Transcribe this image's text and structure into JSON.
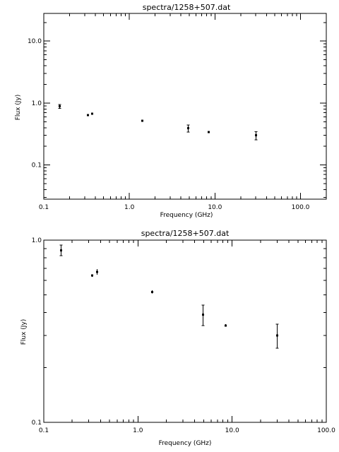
{
  "chart_data": [
    {
      "type": "scatter",
      "title": "spectra/1258+507.dat",
      "xlabel": "Frequency (GHz)",
      "ylabel": "Flux (Jy)",
      "xscale": "log",
      "yscale": "log",
      "xlim": [
        0.1,
        200
      ],
      "ylim": [
        0.028,
        28
      ],
      "xticks": [
        0.1,
        1,
        10,
        100
      ],
      "xtick_labels": [
        "0.1",
        "1.0",
        "10.0",
        "100.0"
      ],
      "yticks": [
        0.1,
        1,
        10
      ],
      "ytick_labels": [
        "0.1",
        "1.0",
        "10.0"
      ],
      "grid": false,
      "legend": "none",
      "points": [
        {
          "x": 0.151,
          "y": 0.88,
          "err": 0.06
        },
        {
          "x": 0.325,
          "y": 0.64,
          "err": 0.01
        },
        {
          "x": 0.365,
          "y": 0.67,
          "err": 0.025
        },
        {
          "x": 1.4,
          "y": 0.52,
          "err": 0.01
        },
        {
          "x": 4.85,
          "y": 0.39,
          "err": 0.05
        },
        {
          "x": 8.4,
          "y": 0.34,
          "err": 0.005
        },
        {
          "x": 30.0,
          "y": 0.3,
          "err": 0.045
        }
      ]
    },
    {
      "type": "scatter",
      "title": "spectra/1258+507.dat",
      "xlabel": "Frequency (GHz)",
      "ylabel": "Flux (Jy)",
      "xscale": "log",
      "yscale": "log",
      "xlim": [
        0.1,
        100
      ],
      "ylim": [
        0.1,
        1
      ],
      "xticks": [
        0.1,
        1,
        10,
        100
      ],
      "xtick_labels": [
        "0.1",
        "1.0",
        "10.0",
        "100.0"
      ],
      "yticks": [
        0.1,
        1
      ],
      "ytick_labels": [
        "0.1",
        "1.0"
      ],
      "grid": false,
      "legend": "none",
      "points": [
        {
          "x": 0.151,
          "y": 0.88,
          "err": 0.06
        },
        {
          "x": 0.325,
          "y": 0.64,
          "err": 0.01
        },
        {
          "x": 0.365,
          "y": 0.67,
          "err": 0.025
        },
        {
          "x": 1.4,
          "y": 0.52,
          "err": 0.01
        },
        {
          "x": 4.85,
          "y": 0.39,
          "err": 0.05
        },
        {
          "x": 8.4,
          "y": 0.34,
          "err": 0.005
        },
        {
          "x": 30.0,
          "y": 0.3,
          "err": 0.045
        }
      ]
    }
  ]
}
